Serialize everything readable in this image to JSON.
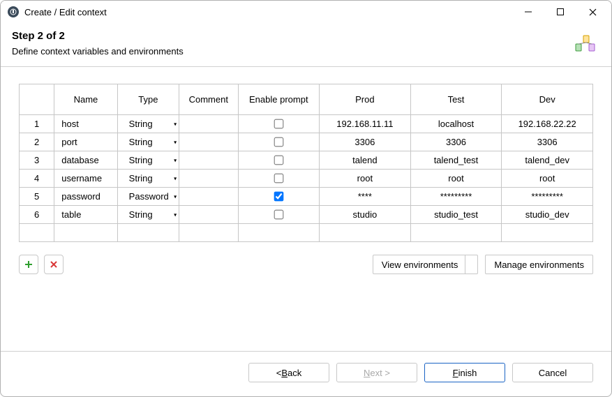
{
  "window": {
    "title": "Create / Edit context"
  },
  "header": {
    "step": "Step 2 of 2",
    "description": "Define context variables and environments"
  },
  "table": {
    "columns": {
      "name": "Name",
      "type": "Type",
      "comment": "Comment",
      "enable_prompt": "Enable prompt",
      "env1": "Prod",
      "env2": "Test",
      "env3": "Dev"
    },
    "rows": [
      {
        "num": "1",
        "name": "host",
        "type": "String",
        "comment": "",
        "prompt": false,
        "env1": "192.168.11.11",
        "env2": "localhost",
        "env3": "192.168.22.22"
      },
      {
        "num": "2",
        "name": "port",
        "type": "String",
        "comment": "",
        "prompt": false,
        "env1": "3306",
        "env2": "3306",
        "env3": "3306"
      },
      {
        "num": "3",
        "name": "database",
        "type": "String",
        "comment": "",
        "prompt": false,
        "env1": "talend",
        "env2": "talend_test",
        "env3": "talend_dev"
      },
      {
        "num": "4",
        "name": "username",
        "type": "String",
        "comment": "",
        "prompt": false,
        "env1": "root",
        "env2": "root",
        "env3": "root"
      },
      {
        "num": "5",
        "name": "password",
        "type": "Password",
        "comment": "",
        "prompt": true,
        "env1": "****",
        "env2": "*********",
        "env3": "*********"
      },
      {
        "num": "6",
        "name": "table",
        "type": "String",
        "comment": "",
        "prompt": false,
        "env1": "studio",
        "env2": "studio_test",
        "env3": "studio_dev"
      }
    ]
  },
  "actions": {
    "view_environments": "View environments",
    "manage_environments": "Manage environments"
  },
  "wizard": {
    "back_prefix": "< ",
    "back_mnemonic": "B",
    "back_suffix": "ack",
    "next_mnemonic": "N",
    "next_suffix": "ext >",
    "finish_mnemonic": "F",
    "finish_suffix": "inish",
    "cancel": "Cancel"
  },
  "colors": {
    "border": "#c6c6c6",
    "primary": "#1a63c4",
    "add_icon": "#2e9e2e",
    "remove_icon": "#d93636"
  }
}
